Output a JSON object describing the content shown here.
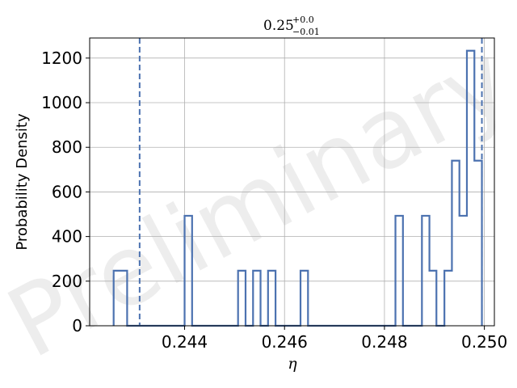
{
  "chart_data": {
    "type": "histogram",
    "title": {
      "value": "0.25",
      "upper": "+0.0",
      "lower": "−0.01"
    },
    "xlabel": "η",
    "ylabel": "Probability Density",
    "watermark": "Preliminary",
    "xlim": [
      0.2421,
      0.2502
    ],
    "ylim": [
      0,
      1290
    ],
    "xticks": [
      0.244,
      0.246,
      0.248,
      0.25
    ],
    "xtick_labels": [
      "0.244",
      "0.246",
      "0.248",
      "0.250"
    ],
    "yticks": [
      0,
      200,
      400,
      600,
      800,
      1000,
      1200
    ],
    "ytick_labels": [
      "0",
      "200",
      "400",
      "600",
      "800",
      "1000",
      "1200"
    ],
    "grid": true,
    "color": "#4c72b0",
    "bin_edges": [
      0.24258,
      0.24285,
      0.24312,
      0.24339,
      0.24366,
      0.24393,
      0.244,
      0.24415,
      0.24507,
      0.24522,
      0.24537,
      0.24552,
      0.24567,
      0.24582,
      0.24632,
      0.24647,
      0.24822,
      0.24837,
      0.24875,
      0.2489,
      0.24904,
      0.2492,
      0.24935,
      0.2495,
      0.24965,
      0.2498,
      0.24995
    ],
    "densities": [
      247,
      0,
      0,
      0,
      0,
      0,
      493,
      0,
      247,
      0,
      247,
      0,
      247,
      0,
      247,
      0,
      493,
      0,
      493,
      247,
      0,
      247,
      740,
      493,
      1233,
      740
    ],
    "vlines": [
      0.2431,
      0.24995
    ]
  }
}
